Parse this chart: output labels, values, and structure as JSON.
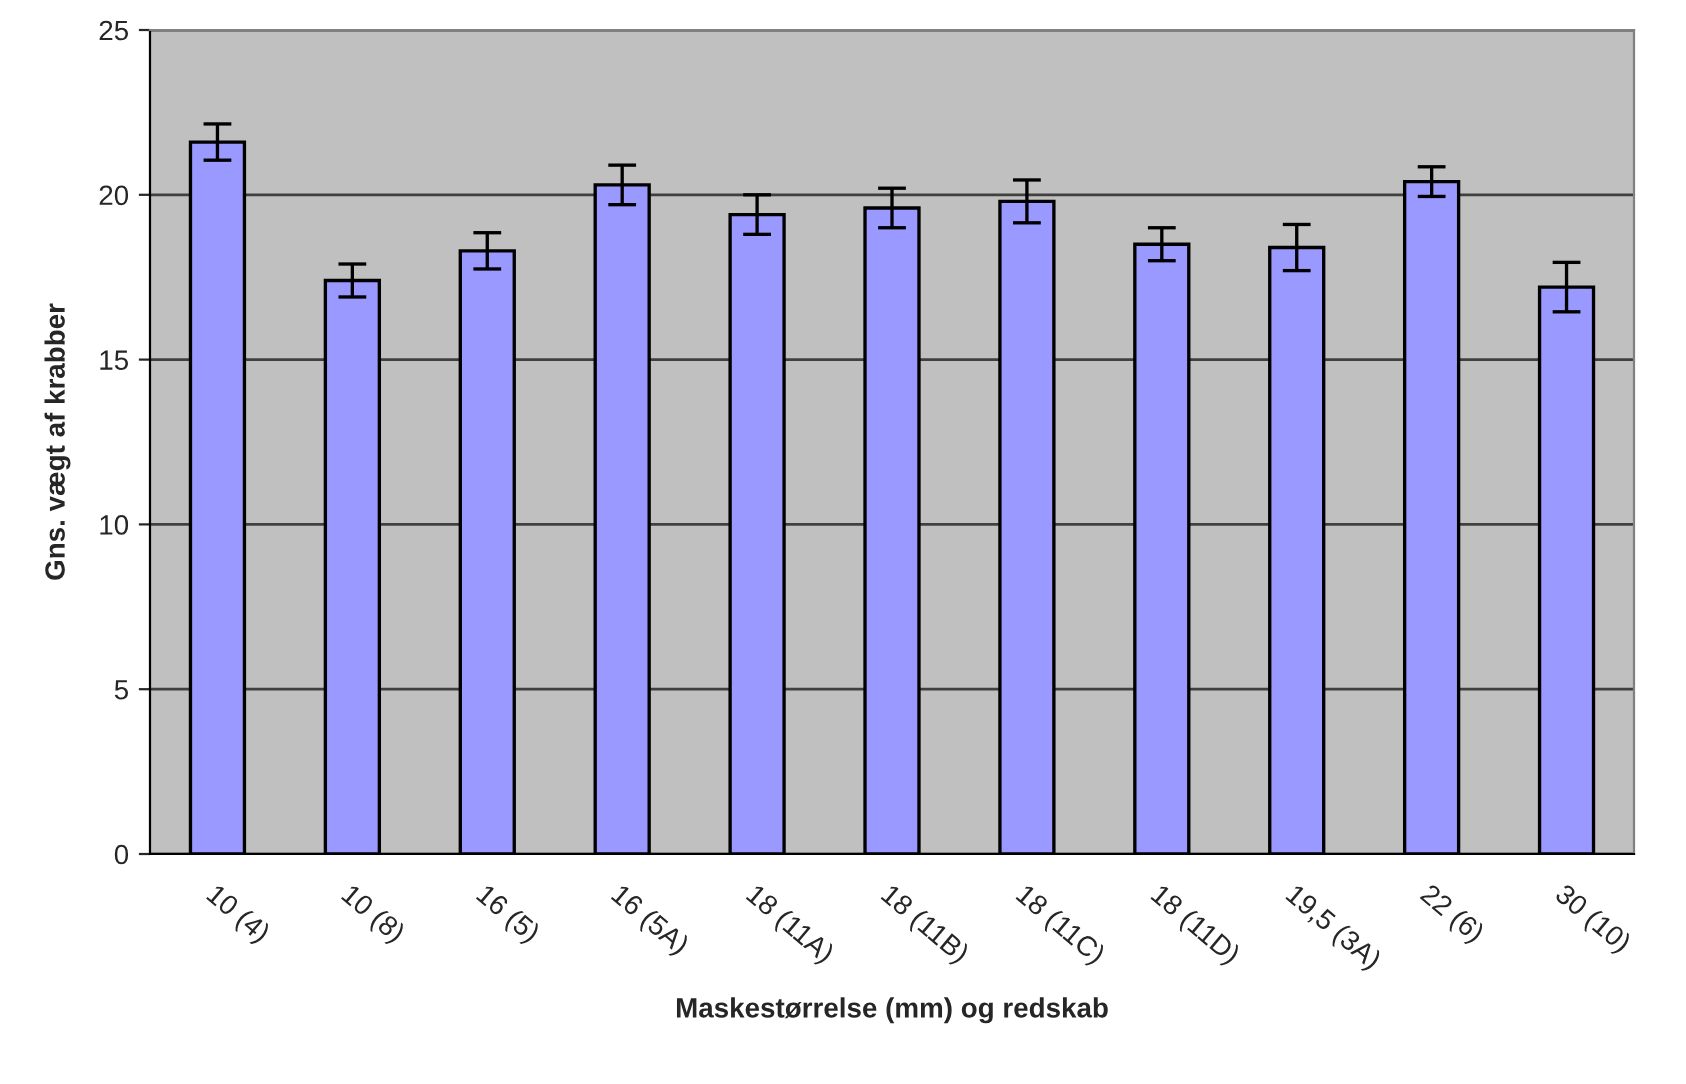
{
  "chart_data": {
    "type": "bar",
    "xlabel": "Maskestørrelse (mm) og redskab",
    "ylabel": "Gns. vægt af krabber",
    "categories": [
      "10 (4)",
      "10 (8)",
      "16 (5)",
      "16 (5A)",
      "18 (11A)",
      "18 (11B)",
      "18 (11C)",
      "18 (11D)",
      "19,5 (3A)",
      "22 (6)",
      "30 (10)"
    ],
    "values": [
      21.6,
      17.4,
      18.3,
      20.3,
      19.4,
      19.6,
      19.8,
      18.5,
      18.4,
      20.4,
      17.2
    ],
    "errors": [
      0.55,
      0.5,
      0.55,
      0.6,
      0.6,
      0.6,
      0.65,
      0.5,
      0.7,
      0.45,
      0.75
    ],
    "color": "#9999ff",
    "ylim": [
      0,
      25
    ],
    "yticks": [
      0,
      5,
      10,
      15,
      20,
      25
    ],
    "grid": "y",
    "legend": false
  }
}
